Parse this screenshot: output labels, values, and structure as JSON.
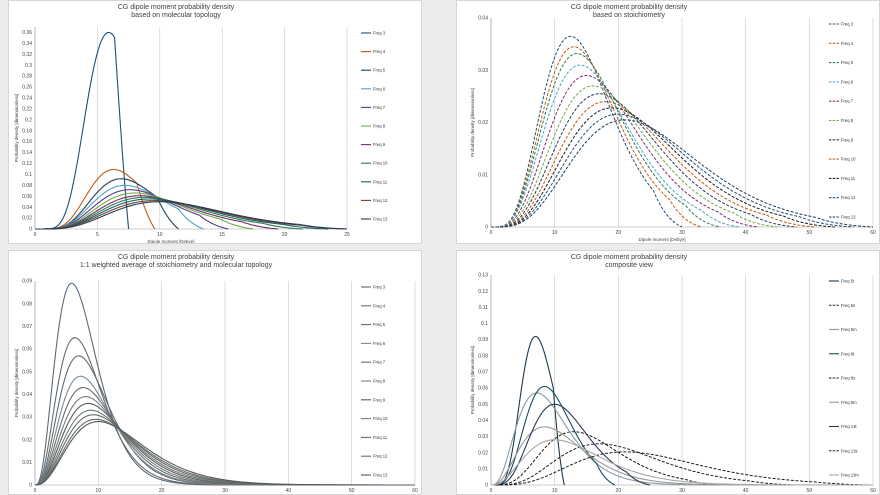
{
  "chart_data": [
    {
      "type": "line",
      "title": "CG dipole moment probability density",
      "subtitle": "based on molecular topology",
      "xlabel": "Dipole moment [Debye]",
      "ylabel": "Probability density [dimensionless]",
      "xlim": [
        0,
        25
      ],
      "ylim": [
        0,
        0.37
      ],
      "xticks": [
        0,
        5,
        10,
        15,
        20,
        25
      ],
      "yticks": [
        0,
        0.02,
        0.04,
        0.06,
        0.08,
        0.1,
        0.12,
        0.14,
        0.16,
        0.18,
        0.2,
        0.22,
        0.24,
        0.26,
        0.28,
        0.3,
        0.32,
        0.34,
        0.36
      ],
      "grid": "vertical",
      "legend": "right",
      "series": [
        {
          "name": "Freq 3",
          "peak_x": 5.9,
          "peak_y": 0.36,
          "end_x": 7.5,
          "color": "#1f4e79",
          "dash": false
        },
        {
          "name": "Freq 4",
          "peak_x": 6.3,
          "peak_y": 0.109,
          "end_x": 9.6,
          "color": "#c55a11",
          "dash": false
        },
        {
          "name": "Freq 5",
          "peak_x": 6.9,
          "peak_y": 0.092,
          "end_x": 11.5,
          "color": "#1e3f5a",
          "dash": false
        },
        {
          "name": "Freq 6",
          "peak_x": 7.2,
          "peak_y": 0.08,
          "end_x": 13.5,
          "color": "#4aa3c7",
          "dash": false
        },
        {
          "name": "Freq 7",
          "peak_x": 7.6,
          "peak_y": 0.072,
          "end_x": 15.5,
          "color": "#5b3b8c",
          "dash": false
        },
        {
          "name": "Freq 8",
          "peak_x": 8.0,
          "peak_y": 0.066,
          "end_x": 17.5,
          "color": "#70ad47",
          "dash": false
        },
        {
          "name": "Freq 9",
          "peak_x": 8.4,
          "peak_y": 0.061,
          "end_x": 19.5,
          "color": "#7b2c6e",
          "dash": false
        },
        {
          "name": "Freq 10",
          "peak_x": 8.8,
          "peak_y": 0.058,
          "end_x": 21.5,
          "color": "#2e7d4f",
          "dash": false
        },
        {
          "name": "Freq 11",
          "peak_x": 9.2,
          "peak_y": 0.055,
          "end_x": 23.5,
          "color": "#1b5e6b",
          "dash": false
        },
        {
          "name": "Freq 12",
          "peak_x": 9.6,
          "peak_y": 0.052,
          "end_x": 25,
          "color": "#6b4226",
          "dash": false
        },
        {
          "name": "Freq 13",
          "peak_x": 10.0,
          "peak_y": 0.05,
          "end_x": 25,
          "color": "#243b55",
          "dash": false
        }
      ]
    },
    {
      "type": "line",
      "title": "CG dipole moment probability density",
      "subtitle": "based on stoichiometry",
      "xlabel": "Dipole moment [Debye]",
      "ylabel": "Probability density [dimensionless]",
      "xlim": [
        0,
        60
      ],
      "ylim": [
        0,
        0.04
      ],
      "xticks": [
        0,
        10,
        20,
        30,
        40,
        50,
        60
      ],
      "yticks": [
        0,
        0.01,
        0.02,
        0.03,
        0.04
      ],
      "grid": "vertical",
      "legend": "right",
      "series": [
        {
          "name": "Freq 3",
          "peak_x": 12.5,
          "peak_y": 0.0365,
          "end_x": 30,
          "color": "#1f4e79",
          "dash": true
        },
        {
          "name": "Freq 4",
          "peak_x": 13.0,
          "peak_y": 0.0345,
          "end_x": 33,
          "color": "#c55a11",
          "dash": true
        },
        {
          "name": "Freq 5",
          "peak_x": 13.5,
          "peak_y": 0.0332,
          "end_x": 36,
          "color": "#2e7d4f",
          "dash": true
        },
        {
          "name": "Freq 6",
          "peak_x": 14.0,
          "peak_y": 0.031,
          "end_x": 39,
          "color": "#4aa3c7",
          "dash": true
        },
        {
          "name": "Freq 7",
          "peak_x": 15.0,
          "peak_y": 0.029,
          "end_x": 42,
          "color": "#7b2c6e",
          "dash": true
        },
        {
          "name": "Freq 8",
          "peak_x": 16.0,
          "peak_y": 0.027,
          "end_x": 45,
          "color": "#70ad47",
          "dash": true
        },
        {
          "name": "Freq 9",
          "peak_x": 17.0,
          "peak_y": 0.0255,
          "end_x": 48,
          "color": "#243b55",
          "dash": true
        },
        {
          "name": "Freq 10",
          "peak_x": 18.0,
          "peak_y": 0.024,
          "end_x": 51,
          "color": "#c55a11",
          "dash": true
        },
        {
          "name": "Freq 11",
          "peak_x": 19.0,
          "peak_y": 0.0228,
          "end_x": 54,
          "color": "#1b1b1b",
          "dash": true
        },
        {
          "name": "Freq 12",
          "peak_x": 20.0,
          "peak_y": 0.0216,
          "end_x": 57,
          "color": "#1f4e79",
          "dash": true
        },
        {
          "name": "Freq 13",
          "peak_x": 21.0,
          "peak_y": 0.0205,
          "end_x": 60,
          "color": "#1e3f5a",
          "dash": true
        }
      ]
    },
    {
      "type": "line",
      "title": "CG dipole moment probability density",
      "subtitle": "1:1 weighted average of stoichiometry and molecular topology",
      "xlabel": "",
      "ylabel": "Probability density [dimensionless]",
      "xlim": [
        0,
        60
      ],
      "ylim": [
        0,
        0.09
      ],
      "xticks": [
        0,
        10,
        20,
        30,
        40,
        50,
        60
      ],
      "yticks": [
        0,
        0.01,
        0.02,
        0.03,
        0.04,
        0.05,
        0.06,
        0.07,
        0.08,
        0.09
      ],
      "grid": "vertical",
      "legend": "right",
      "series": [
        {
          "name": "Freq 3",
          "peak_x": 5.8,
          "peak_y": 0.089,
          "end_x": 30,
          "color": "#5a6a7a",
          "dash": false
        },
        {
          "name": "Freq 4",
          "peak_x": 6.3,
          "peak_y": 0.065,
          "end_x": 33,
          "color": "#6a6a6a",
          "dash": false
        },
        {
          "name": "Freq 5",
          "peak_x": 6.9,
          "peak_y": 0.057,
          "end_x": 36,
          "color": "#5f6b72",
          "dash": false
        },
        {
          "name": "Freq 6",
          "peak_x": 7.2,
          "peak_y": 0.048,
          "end_x": 39,
          "color": "#7a8a95",
          "dash": false
        },
        {
          "name": "Freq 7",
          "peak_x": 7.6,
          "peak_y": 0.043,
          "end_x": 42,
          "color": "#6b6b6b",
          "dash": false
        },
        {
          "name": "Freq 8",
          "peak_x": 8.0,
          "peak_y": 0.039,
          "end_x": 45,
          "color": "#7a7a7a",
          "dash": false
        },
        {
          "name": "Freq 9",
          "peak_x": 8.4,
          "peak_y": 0.036,
          "end_x": 48,
          "color": "#5c5c5c",
          "dash": false
        },
        {
          "name": "Freq 10",
          "peak_x": 8.8,
          "peak_y": 0.033,
          "end_x": 51,
          "color": "#6e7d70",
          "dash": false
        },
        {
          "name": "Freq 11",
          "peak_x": 9.2,
          "peak_y": 0.031,
          "end_x": 54,
          "color": "#5a6e75",
          "dash": false
        },
        {
          "name": "Freq 12",
          "peak_x": 9.6,
          "peak_y": 0.029,
          "end_x": 57,
          "color": "#74685d",
          "dash": false
        },
        {
          "name": "Freq 13",
          "peak_x": 10.0,
          "peak_y": 0.028,
          "end_x": 60,
          "color": "#505a66",
          "dash": false
        }
      ]
    },
    {
      "type": "line",
      "title": "CG dipole moment probability density",
      "subtitle": "composite view",
      "xlabel": "",
      "ylabel": "Probability density [dimensionless]",
      "xlim": [
        0,
        60
      ],
      "ylim": [
        0,
        0.13
      ],
      "xticks": [
        0,
        10,
        20,
        30,
        40,
        50,
        60
      ],
      "yticks": [
        0,
        0.01,
        0.02,
        0.03,
        0.04,
        0.05,
        0.06,
        0.07,
        0.08,
        0.09,
        0.1,
        0.11,
        0.12,
        0.13
      ],
      "grid": "vertical",
      "legend": "right",
      "series": [
        {
          "name": "Freq 5t",
          "peak_x": 7.0,
          "peak_y": 0.092,
          "end_x": 11.5,
          "color": "#1f3a4d",
          "dash": false
        },
        {
          "name": "Freq 5s",
          "peak_x": 13.0,
          "peak_y": 0.033,
          "end_x": 36,
          "color": "#1b1b1b",
          "dash": true
        },
        {
          "name": "Freq 5m",
          "peak_x": 7.2,
          "peak_y": 0.057,
          "end_x": 36,
          "color": "#8a9aa5",
          "dash": false
        },
        {
          "name": "Freq 9t",
          "peak_x": 8.4,
          "peak_y": 0.061,
          "end_x": 19.5,
          "color": "#1b4b5a",
          "dash": false
        },
        {
          "name": "Freq 9s",
          "peak_x": 17.0,
          "peak_y": 0.0255,
          "end_x": 48,
          "color": "#1b1b1b",
          "dash": true
        },
        {
          "name": "Freq 9m",
          "peak_x": 8.4,
          "peak_y": 0.036,
          "end_x": 48,
          "color": "#9a9a9a",
          "dash": false
        },
        {
          "name": "Freq 13t",
          "peak_x": 10.0,
          "peak_y": 0.05,
          "end_x": 25,
          "color": "#2a3a55",
          "dash": false
        },
        {
          "name": "Freq 13s",
          "peak_x": 21.0,
          "peak_y": 0.0205,
          "end_x": 60,
          "color": "#1b1b1b",
          "dash": true
        },
        {
          "name": "Freq 13m",
          "peak_x": 10.0,
          "peak_y": 0.028,
          "end_x": 60,
          "color": "#a8a8a8",
          "dash": false
        }
      ]
    }
  ]
}
